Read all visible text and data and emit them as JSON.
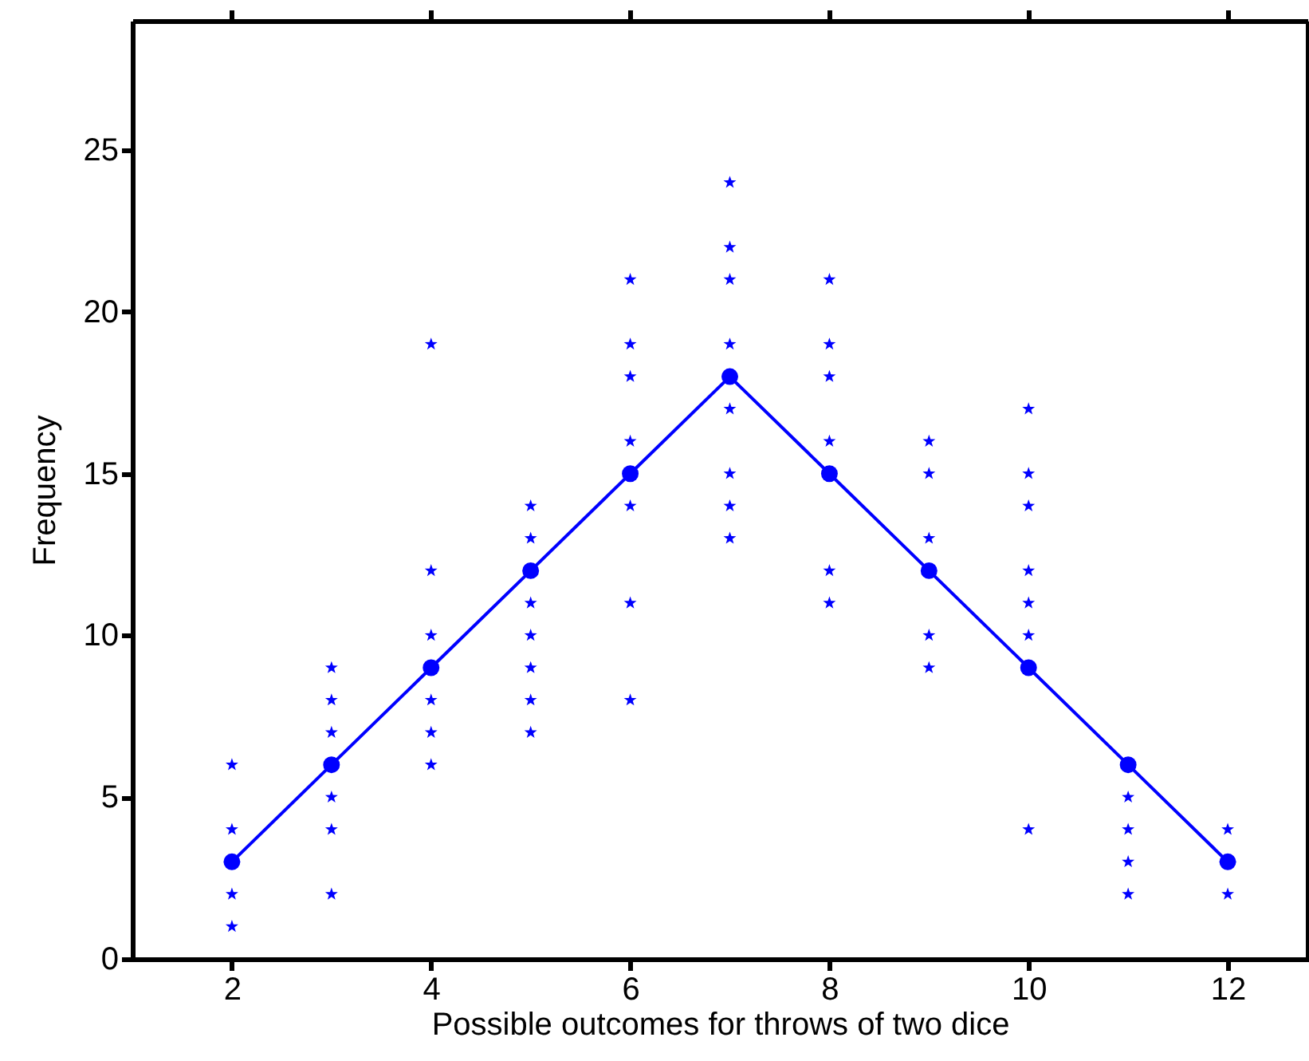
{
  "chart_data": {
    "type": "scatter",
    "xlabel": "Possible  outcomes for throws of two dice",
    "ylabel": "Frequency",
    "xlim": [
      1,
      12.8
    ],
    "ylim": [
      0,
      29
    ],
    "xticks": [
      2,
      4,
      6,
      8,
      10,
      12
    ],
    "yticks": [
      0,
      5,
      10,
      15,
      20,
      25
    ],
    "grid": false,
    "series": [
      {
        "marker": "star",
        "color": "#0000ff",
        "x": [
          2,
          2,
          2,
          2,
          3,
          3,
          3,
          3,
          3,
          3,
          4,
          4,
          4,
          4,
          4,
          4,
          5,
          5,
          5,
          5,
          5,
          5,
          5,
          6,
          6,
          6,
          6,
          6,
          6,
          6,
          7,
          7,
          7,
          7,
          7,
          7,
          7,
          7,
          8,
          8,
          8,
          8,
          8,
          8,
          9,
          9,
          9,
          9,
          9,
          10,
          10,
          10,
          10,
          10,
          10,
          10,
          11,
          11,
          11,
          11,
          12,
          12
        ],
        "values": [
          6,
          4,
          2,
          1,
          9,
          8,
          7,
          5,
          4,
          2,
          19,
          12,
          10,
          8,
          7,
          6,
          14,
          13,
          11,
          10,
          9,
          8,
          7,
          21,
          19,
          18,
          16,
          14,
          11,
          8,
          24,
          22,
          21,
          19,
          17,
          15,
          14,
          13,
          21,
          19,
          18,
          16,
          12,
          11,
          16,
          15,
          13,
          10,
          9,
          17,
          15,
          14,
          12,
          11,
          10,
          4,
          5,
          4,
          3,
          2,
          4,
          2
        ]
      },
      {
        "type": "line",
        "marker": "circle",
        "line_style": "solid",
        "color": "#0000ff",
        "x": [
          2,
          3,
          4,
          5,
          6,
          7,
          8,
          9,
          10,
          11,
          12
        ],
        "values": [
          3,
          6,
          9,
          12,
          15,
          18,
          15,
          12,
          9,
          6,
          3
        ]
      }
    ]
  }
}
